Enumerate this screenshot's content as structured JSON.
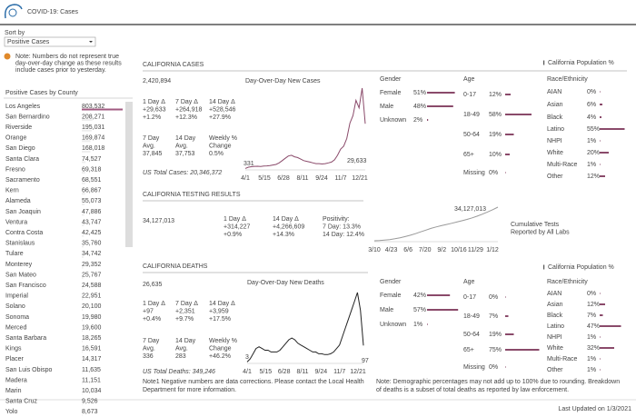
{
  "header": {
    "title": "COVID-19: Cases"
  },
  "sidebar": {
    "sort_label": "Sort by",
    "dropdown": "Positive Cases",
    "note_lines": [
      "Note: Numbers do not represent true",
      "day-over-day change as these results",
      "include cases prior to yesterday."
    ],
    "list_title": "Positive Cases by County",
    "counties": [
      {
        "name": "Los Angeles",
        "value": 803532,
        "value_label": "803,532"
      },
      {
        "name": "San Bernardino",
        "value": 208271,
        "value_label": "208,271"
      },
      {
        "name": "Riverside",
        "value": 195031,
        "value_label": "195,031"
      },
      {
        "name": "Orange",
        "value": 169874,
        "value_label": "169,874"
      },
      {
        "name": "San Diego",
        "value": 168018,
        "value_label": "168,018"
      },
      {
        "name": "Santa Clara",
        "value": 74527,
        "value_label": "74,527"
      },
      {
        "name": "Fresno",
        "value": 69318,
        "value_label": "69,318"
      },
      {
        "name": "Sacramento",
        "value": 68551,
        "value_label": "68,551"
      },
      {
        "name": "Kern",
        "value": 66867,
        "value_label": "66,867"
      },
      {
        "name": "Alameda",
        "value": 55073,
        "value_label": "55,073"
      },
      {
        "name": "San Joaquin",
        "value": 47886,
        "value_label": "47,886"
      },
      {
        "name": "Ventura",
        "value": 43747,
        "value_label": "43,747"
      },
      {
        "name": "Contra Costa",
        "value": 42425,
        "value_label": "42,425"
      },
      {
        "name": "Stanislaus",
        "value": 35760,
        "value_label": "35,760"
      },
      {
        "name": "Tulare",
        "value": 34742,
        "value_label": "34,742"
      },
      {
        "name": "Monterey",
        "value": 29352,
        "value_label": "29,352"
      },
      {
        "name": "San Mateo",
        "value": 25767,
        "value_label": "25,767"
      },
      {
        "name": "San Francisco",
        "value": 24588,
        "value_label": "24,588"
      },
      {
        "name": "Imperial",
        "value": 22951,
        "value_label": "22,951"
      },
      {
        "name": "Solano",
        "value": 20100,
        "value_label": "20,100"
      },
      {
        "name": "Sonoma",
        "value": 19980,
        "value_label": "19,980"
      },
      {
        "name": "Merced",
        "value": 19600,
        "value_label": "19,600"
      },
      {
        "name": "Santa Barbara",
        "value": 18265,
        "value_label": "18,265"
      },
      {
        "name": "Kings",
        "value": 16591,
        "value_label": "16,591"
      },
      {
        "name": "Placer",
        "value": 14317,
        "value_label": "14,317"
      },
      {
        "name": "San Luis Obispo",
        "value": 11635,
        "value_label": "11,635"
      },
      {
        "name": "Madera",
        "value": 11151,
        "value_label": "11,151"
      },
      {
        "name": "Marin",
        "value": 10034,
        "value_label": "10,034"
      },
      {
        "name": "Santa Cruz",
        "value": 9526,
        "value_label": "9,526"
      },
      {
        "name": "Yolo",
        "value": 8673,
        "value_label": "8,673"
      }
    ]
  },
  "legend": "California Population %",
  "cases": {
    "title": "CALIFORNIA CASES",
    "total": "2,420,894",
    "stats": [
      [
        "1 Day Δ",
        "+29,633",
        "+1.2%"
      ],
      [
        "7 Day Δ",
        "+264,918",
        "+12.3%"
      ],
      [
        "14 Day Δ",
        "+528,546",
        "+27.9%"
      ],
      [
        "7 Day",
        "Avg.",
        "37,845"
      ],
      [
        "14 Day",
        "Avg.",
        "37,753"
      ],
      [
        "Weekly %",
        "Change",
        "0.5%"
      ]
    ],
    "us_total": "US Total Cases: 20,346,372",
    "chart": {
      "title": "Day-Over-Day New Cases",
      "x_labels": [
        "4/1",
        "5/15",
        "6/28",
        "8/11",
        "9/24",
        "11/7",
        "12/21"
      ],
      "values": [
        331,
        1200,
        1500,
        1700,
        1800,
        1600,
        1900,
        2000,
        2200,
        2600,
        3000,
        4000,
        5500,
        7000,
        8500,
        9000,
        8000,
        7500,
        6500,
        5500,
        5000,
        4500,
        4000,
        3500,
        3500,
        3300,
        3500,
        4000,
        4500,
        6000,
        9000,
        13000,
        15000,
        20000,
        30000,
        35000,
        45000,
        40000,
        53000,
        29633
      ],
      "start_label": "331",
      "end_label": "29,633"
    },
    "demographics": {
      "gender": {
        "title": "Gender",
        "items": [
          {
            "name": "Female",
            "value": 51,
            "value_label": "51%"
          },
          {
            "name": "Male",
            "value": 48,
            "value_label": "48%"
          },
          {
            "name": "Unknown",
            "value": 2,
            "value_label": "2%"
          }
        ]
      },
      "age": {
        "title": "Age",
        "items": [
          {
            "name": "0-17",
            "value": 12,
            "value_label": "12%"
          },
          {
            "name": "18-49",
            "value": 58,
            "value_label": "58%"
          },
          {
            "name": "50-64",
            "value": 19,
            "value_label": "19%"
          },
          {
            "name": "65+",
            "value": 10,
            "value_label": "10%"
          },
          {
            "name": "Missing",
            "value": 0,
            "value_label": "0%"
          }
        ]
      },
      "race": {
        "title": "Race/Ethnicity",
        "items": [
          {
            "name": "AIAN",
            "value": 0,
            "value_label": "0%"
          },
          {
            "name": "Asian",
            "value": 6,
            "value_label": "6%"
          },
          {
            "name": "Black",
            "value": 4,
            "value_label": "4%"
          },
          {
            "name": "Latino",
            "value": 55,
            "value_label": "55%"
          },
          {
            "name": "NHPI",
            "value": 1,
            "value_label": "1%"
          },
          {
            "name": "White",
            "value": 20,
            "value_label": "20%"
          },
          {
            "name": "Multi-Race",
            "value": 1,
            "value_label": "1%"
          },
          {
            "name": "Other",
            "value": 12,
            "value_label": "12%"
          }
        ]
      }
    }
  },
  "testing": {
    "title": "CALIFORNIA TESTING RESULTS",
    "total": "34,127,013",
    "stats": [
      [
        "1 Day Δ",
        "+314,227",
        "+0.9%"
      ],
      [
        "14 Day Δ",
        "+4,266,609",
        "+14.3%"
      ],
      [
        "Positivity:",
        "7 Day: 13.3%",
        "14 Day: 12.4%"
      ]
    ],
    "chart": {
      "x_labels": [
        "3/10",
        "4/23",
        "6/6",
        "7/20",
        "9/2",
        "10/16",
        "11/29",
        "1/12"
      ],
      "values": [
        8000,
        200000,
        600000,
        1200000,
        2000000,
        3000000,
        4200000,
        5600000,
        7200000,
        9000000,
        10800000,
        12500000,
        14000000,
        15300000,
        16500000,
        17700000,
        19000000,
        20300000,
        21700000,
        23200000,
        25000000,
        27000000,
        29200000,
        31500000,
        34127013
      ],
      "end_label": "34,127,013"
    },
    "note_lines": [
      "Cumulative Tests",
      "Reported by All Labs"
    ]
  },
  "deaths": {
    "title": "CALIFORNIA DEATHS",
    "total": "26,635",
    "stats": [
      [
        "1 Day Δ",
        "+97",
        "+0.4%"
      ],
      [
        "7 Day Δ",
        "+2,351",
        "+9.7%"
      ],
      [
        "14 Day Δ",
        "+3,959",
        "+17.5%"
      ],
      [
        "7 Day",
        "Avg.",
        "336"
      ],
      [
        "14 Day",
        "Avg.",
        "283"
      ],
      [
        "Weekly %",
        "Change",
        "+46.2%"
      ]
    ],
    "us_total": "US Total Deaths: 349,246",
    "chart": {
      "title": "Day-Over-Day New Deaths",
      "x_labels": [
        "4/1",
        "5/15",
        "6/28",
        "8/11",
        "9/24",
        "11/7",
        "12/21"
      ],
      "values": [
        3,
        20,
        50,
        80,
        90,
        80,
        70,
        70,
        60,
        60,
        60,
        70,
        90,
        110,
        130,
        140,
        130,
        110,
        100,
        90,
        80,
        70,
        60,
        60,
        50,
        50,
        45,
        45,
        50,
        60,
        80,
        100,
        150,
        200,
        250,
        300,
        350,
        400,
        300,
        97
      ],
      "start_label": "3",
      "end_label": "97"
    },
    "demographics": {
      "gender": {
        "title": "Gender",
        "items": [
          {
            "name": "Female",
            "value": 42,
            "value_label": "42%"
          },
          {
            "name": "Male",
            "value": 57,
            "value_label": "57%"
          },
          {
            "name": "Unknown",
            "value": 1,
            "value_label": "1%"
          }
        ]
      },
      "age": {
        "title": "Age",
        "items": [
          {
            "name": "0-17",
            "value": 0,
            "value_label": "0%"
          },
          {
            "name": "18-49",
            "value": 7,
            "value_label": "7%"
          },
          {
            "name": "50-64",
            "value": 19,
            "value_label": "19%"
          },
          {
            "name": "65+",
            "value": 75,
            "value_label": "75%"
          },
          {
            "name": "Missing",
            "value": 0,
            "value_label": "0%"
          }
        ]
      },
      "race": {
        "title": "Race/Ethnicity",
        "items": [
          {
            "name": "AIAN",
            "value": 0,
            "value_label": "0%"
          },
          {
            "name": "Asian",
            "value": 12,
            "value_label": "12%"
          },
          {
            "name": "Black",
            "value": 7,
            "value_label": "7%"
          },
          {
            "name": "Latino",
            "value": 47,
            "value_label": "47%"
          },
          {
            "name": "NHPI",
            "value": 1,
            "value_label": "1%"
          },
          {
            "name": "White",
            "value": 32,
            "value_label": "32%"
          },
          {
            "name": "Multi-Race",
            "value": 1,
            "value_label": "1%"
          },
          {
            "name": "Other",
            "value": 1,
            "value_label": "1%"
          }
        ]
      }
    },
    "note1_lines": [
      "Note1  Negative numbers are data corrections. Please contact the Local Health",
      "Department for more information."
    ],
    "note_lines": [
      "Note: Demographic percentages may not add up to 100% due to rounding. Breakdown",
      "of deaths is a subset of total deaths as reported by law enforcement."
    ]
  },
  "footer": "Last Updated on 1/3/2021"
}
